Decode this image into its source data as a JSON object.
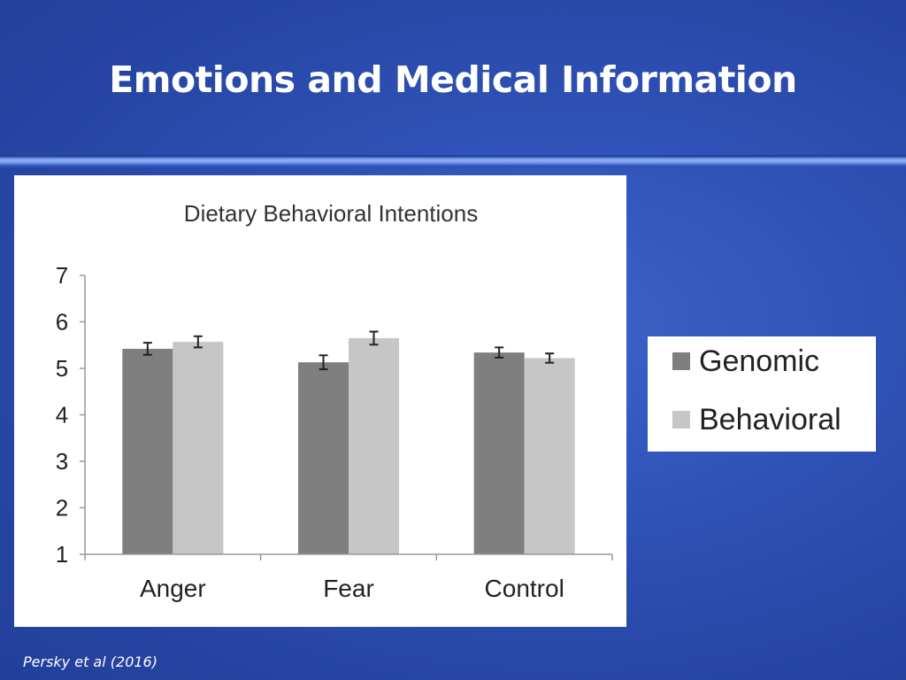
{
  "slide": {
    "title": "Emotions and Medical Information",
    "citation": "Persky et al (2016)"
  },
  "legend": {
    "items": [
      {
        "label": "Genomic",
        "color": "#7f7f7f"
      },
      {
        "label": "Behavioral",
        "color": "#c6c6c6"
      }
    ]
  },
  "chart_data": {
    "type": "bar",
    "title": "Dietary Behavioral Intentions",
    "xlabel": "",
    "ylabel": "",
    "categories": [
      "Anger",
      "Fear",
      "Control"
    ],
    "series": [
      {
        "name": "Genomic",
        "values": [
          5.42,
          5.13,
          5.34
        ],
        "errors": [
          0.13,
          0.15,
          0.11
        ],
        "color": "#7f7f7f"
      },
      {
        "name": "Behavioral",
        "values": [
          5.57,
          5.65,
          5.22
        ],
        "errors": [
          0.12,
          0.14,
          0.1
        ],
        "color": "#c6c6c6"
      }
    ],
    "ylim": [
      1,
      7
    ],
    "yticks": [
      1,
      2,
      3,
      4,
      5,
      6,
      7
    ],
    "grid": false,
    "legend_position": "right"
  }
}
